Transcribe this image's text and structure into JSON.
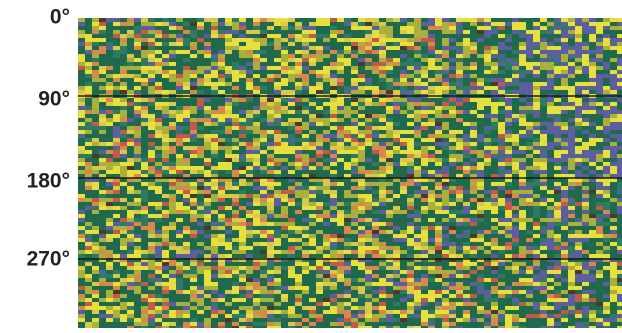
{
  "axis_labels": [
    "0°",
    "90°",
    "180°",
    "270°"
  ]
}
